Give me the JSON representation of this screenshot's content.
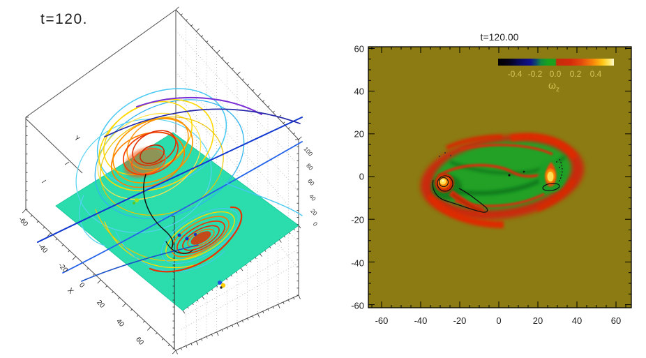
{
  "figure": {
    "background": "#ffffff",
    "panel_count": 2
  },
  "chart_data": [
    {
      "type": "line",
      "subtype": "3d-field-lines",
      "title": "t=120.",
      "xlabel": "X",
      "ylabel": "Y",
      "x_ticks": [
        "-60",
        "-40",
        "-20",
        "0",
        "20",
        "40",
        "60"
      ],
      "z_ticks": [
        "100",
        "80",
        "60",
        "40",
        "20",
        "0"
      ],
      "xlim": [
        -60,
        60
      ],
      "ylim": [
        -60,
        60
      ],
      "zlim": [
        0,
        100
      ],
      "grid": "dotted",
      "plane": {
        "z": 0,
        "color": "#2bdcad"
      },
      "series": [
        {
          "name": "flux-rope-loops-hot",
          "colors": [
            "#ffd800",
            "#ff9000",
            "#f23d00",
            "#e02f00"
          ],
          "description": "nested twisted loops of main flux rope"
        },
        {
          "name": "secondary-swirl",
          "colors": [
            "#ffd800",
            "#ff7300",
            "#e82800"
          ],
          "description": "smaller dense loop bundle below main rope"
        },
        {
          "name": "outer-field-lines-cool",
          "colors": [
            "#45c8f2",
            "#2262ea",
            "#1038d0",
            "#7a2fd6",
            "#2326a8"
          ],
          "description": "long sweeping ambient field lines"
        },
        {
          "name": "contour-black",
          "colors": [
            "#111111"
          ],
          "description": "black contour segments near rope center"
        }
      ]
    },
    {
      "type": "heatmap",
      "title": "t=120.00",
      "x_ticks": [
        "-60",
        "-40",
        "-20",
        "0",
        "20",
        "40",
        "60"
      ],
      "y_ticks": [
        "60",
        "40",
        "20",
        "0",
        "-20",
        "-40",
        "-60"
      ],
      "xlim": [
        -67,
        67
      ],
      "ylim": [
        -62,
        62
      ],
      "background_color": "#8b7b12",
      "interior_color": "#21a126",
      "rim_color": "#c92c08",
      "core_color": "#ffdf55",
      "colorbar": {
        "tick_labels": [
          "-0.4",
          "-0.2",
          "0.0",
          "0.2",
          "0.4"
        ],
        "symbol": "ω",
        "symbol_sub": "z",
        "min": -0.5,
        "max": 0.5,
        "stops": [
          "#000000 0%",
          "#04041c 10%",
          "#0a0a5a 18%",
          "#10128c 28%",
          "#0d4a6e 33%",
          "#128a40 37%",
          "#17a21e 43%",
          "#1da01e 49.5%",
          "#c62c0a 50.5%",
          "#d42a0c 62%",
          "#e44a0c 72%",
          "#f8860a 82%",
          "#ffc414 90%",
          "#ffe868 96%",
          "#fcf7d0 100%"
        ]
      },
      "features": {
        "vortex_cores": [
          {
            "x": -28,
            "y": -3,
            "sign": "positive",
            "note": "strong core with black contour rings and red tail"
          },
          {
            "x": 27,
            "y": 1,
            "sign": "positive",
            "note": "teardrop core with black contour loop below"
          }
        ]
      }
    }
  ]
}
